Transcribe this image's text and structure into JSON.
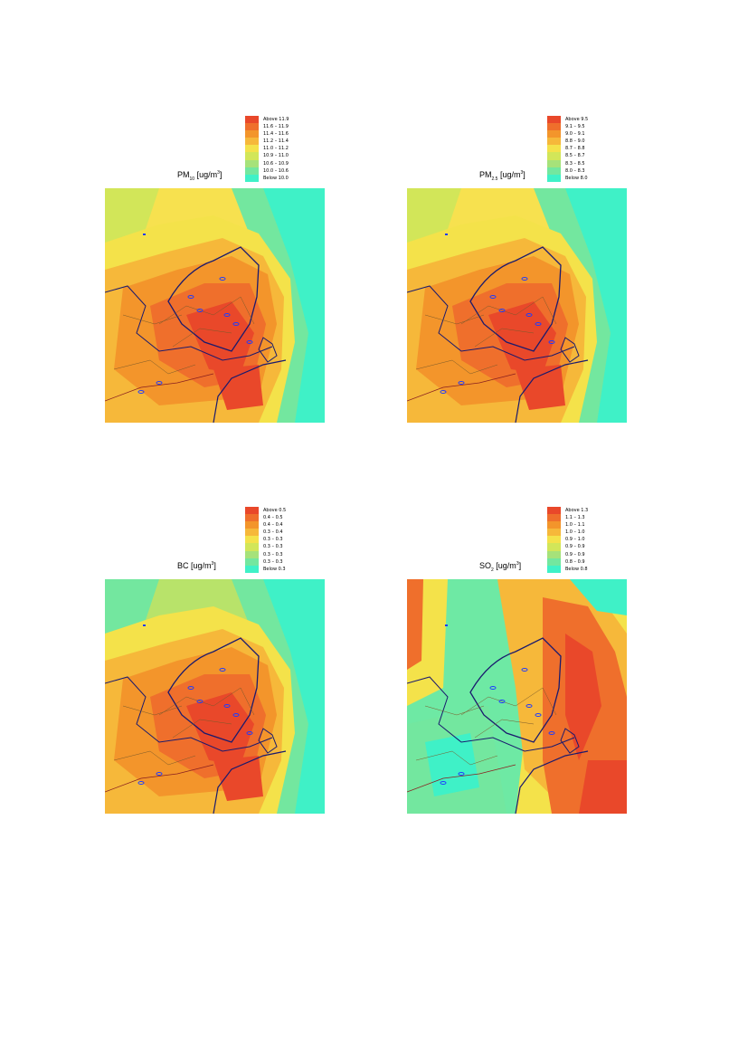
{
  "panels": [
    {
      "title_main": "PM",
      "title_sub": "10",
      "title_unit": "[ug/m",
      "title_sup": "3",
      "title_close": "]",
      "legend": [
        {
          "label": "Above   11.9",
          "color": "#e9482a"
        },
        {
          "label": "11.6 – 11.9",
          "color": "#ef6f2c"
        },
        {
          "label": "11.4 – 11.6",
          "color": "#f3952b"
        },
        {
          "label": "11.2 – 11.4",
          "color": "#f6b83a"
        },
        {
          "label": "11.0 – 11.2",
          "color": "#f4e24a"
        },
        {
          "label": "10.9 – 11.0",
          "color": "#d2e659"
        },
        {
          "label": "10.6 – 10.9",
          "color": "#a6e27a"
        },
        {
          "label": "10.0 – 10.6",
          "color": "#73e79f"
        },
        {
          "label": "Below   10.0",
          "color": "#3ff1c7"
        }
      ],
      "field": {
        "bg": "#f7e14f",
        "sea": "#3ff1c7",
        "variant": "pm"
      }
    },
    {
      "title_main": "PM",
      "title_sub": "2.5",
      "title_unit": "[ug/m",
      "title_sup": "3",
      "title_close": "]",
      "legend": [
        {
          "label": "Above   9.5",
          "color": "#e9482a"
        },
        {
          "label": "9.1 – 9.5",
          "color": "#ef6f2c"
        },
        {
          "label": "9.0 – 9.1",
          "color": "#f3952b"
        },
        {
          "label": "8.8 – 9.0",
          "color": "#f6b83a"
        },
        {
          "label": "8.7 – 8.8",
          "color": "#f4e24a"
        },
        {
          "label": "8.5 – 8.7",
          "color": "#d2e659"
        },
        {
          "label": "8.3 – 8.5",
          "color": "#a6e27a"
        },
        {
          "label": "8.0 – 8.3",
          "color": "#73e79f"
        },
        {
          "label": "Below   8.0",
          "color": "#3ff1c7"
        }
      ],
      "field": {
        "bg": "#f7e14f",
        "sea": "#3ff1c7",
        "variant": "pm"
      }
    },
    {
      "title_main": "BC",
      "title_sub": "",
      "title_unit": " [ug/m",
      "title_sup": "3",
      "title_close": "]",
      "legend": [
        {
          "label": "Above   0.5",
          "color": "#e9482a"
        },
        {
          "label": "0.4 – 0.5",
          "color": "#ef6f2c"
        },
        {
          "label": "0.4 – 0.4",
          "color": "#f3952b"
        },
        {
          "label": "0.3 – 0.4",
          "color": "#f6b83a"
        },
        {
          "label": "0.3 – 0.3",
          "color": "#f4e24a"
        },
        {
          "label": "0.3 – 0.3",
          "color": "#d2e659"
        },
        {
          "label": "0.3 – 0.3",
          "color": "#a6e27a"
        },
        {
          "label": "0.3 – 0.3",
          "color": "#73e79f"
        },
        {
          "label": "Below   0.3",
          "color": "#3ff1c7"
        }
      ],
      "field": {
        "bg": "#b8e36a",
        "sea": "#3ff1c7",
        "variant": "bc"
      }
    },
    {
      "title_main": "SO",
      "title_sub": "2",
      "title_unit": " [ug/m",
      "title_sup": "3",
      "title_close": "]",
      "legend": [
        {
          "label": "Above   1.3",
          "color": "#e9482a"
        },
        {
          "label": "1.1 – 1.3",
          "color": "#ef6f2c"
        },
        {
          "label": "1.0 – 1.1",
          "color": "#f3952b"
        },
        {
          "label": "1.0 – 1.0",
          "color": "#f6b83a"
        },
        {
          "label": "0.9 – 1.0",
          "color": "#f4e24a"
        },
        {
          "label": "0.9 – 0.9",
          "color": "#d2e659"
        },
        {
          "label": "0.9 – 0.9",
          "color": "#a6e27a"
        },
        {
          "label": "0.8 – 0.9",
          "color": "#73e79f"
        },
        {
          "label": "Below   0.8",
          "color": "#3ff1c7"
        }
      ],
      "field": {
        "bg": "#6ee9a4",
        "sea": "#3ff1c7",
        "variant": "so2"
      }
    }
  ]
}
